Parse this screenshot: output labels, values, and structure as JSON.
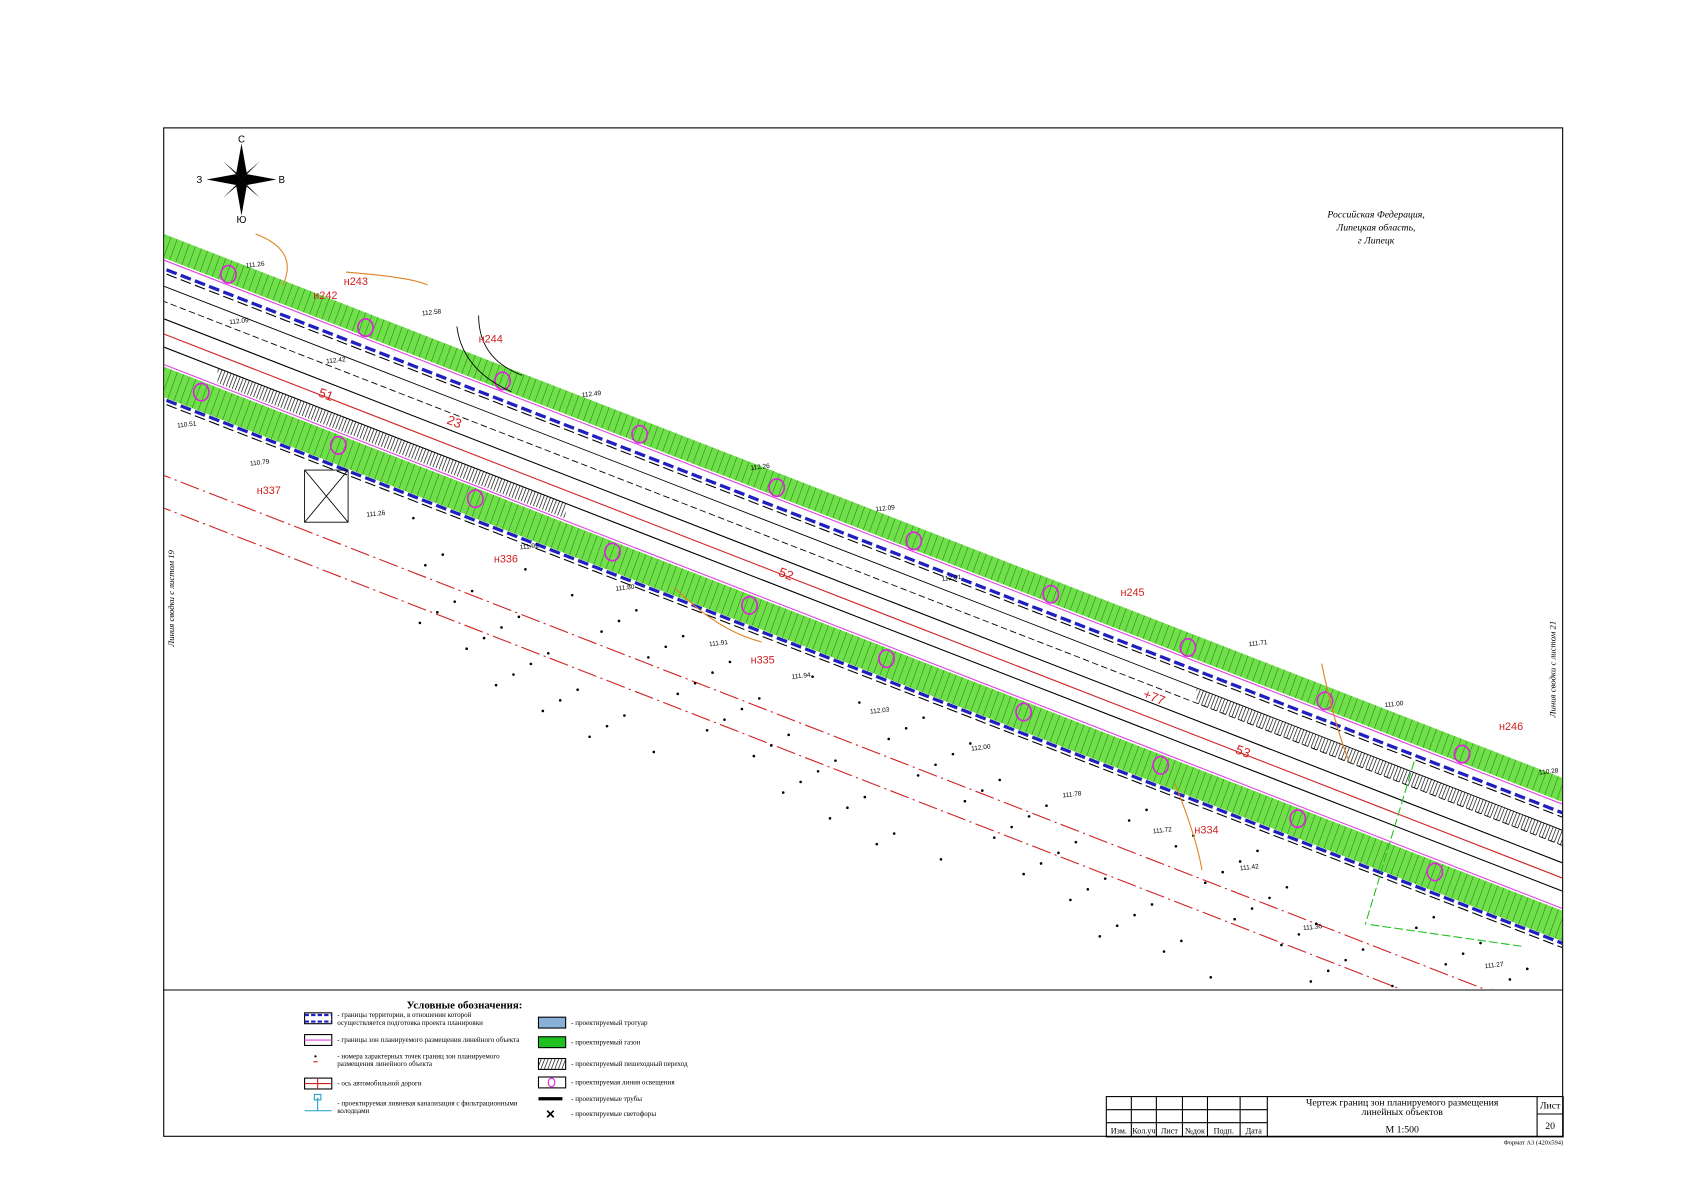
{
  "compass": {
    "north": "С",
    "west": "З",
    "east": "В",
    "south": "Ю"
  },
  "location": [
    "Российская Федерация,",
    "Липецкая область,",
    "г Липецк"
  ],
  "match_lines": {
    "left": "Линия сводки с листом 19",
    "right": "Линия сводки с листом 21"
  },
  "points": [
    "н242",
    "н243",
    "н244",
    "н245",
    "н246",
    "н334",
    "н335",
    "н336",
    "н337"
  ],
  "pickets": [
    "51",
    "52",
    "53",
    "23",
    "+77"
  ],
  "elevations": [
    "111.26",
    "112.09",
    "110.51",
    "110.79",
    "112.58",
    "112.49",
    "112.26",
    "112.09",
    "111.26",
    "111.92",
    "111.80",
    "111.91",
    "111.94",
    "112.03",
    "112.00",
    "111.78",
    "111.72",
    "111.42",
    "111.36",
    "111.27",
    "111.71",
    "111.00",
    "110.28",
    "112.42",
    "112.01"
  ],
  "legend": {
    "title": "Условные обозначения:",
    "items": [
      "- границы территории, в отношении которой осуществляется подготовка проекта планировки",
      "- границы зон планируемого размещения линейного объекта",
      "- номера характерных точек границ зон планируемого размещения линейного объекта",
      "- ось автомобильной дороги",
      "- проектируемая ливневая канализация с фильтрационными колодцами",
      "- проектируемый тротуар",
      "- проектируемый газон",
      "- проектируемый пешеходный переход",
      "- проектируемая линия освещения",
      "- проектируемые трубы",
      "- проектируемые светофоры"
    ]
  },
  "title_block": {
    "title": "Чертеж границ зон планируемого размещения линейных объектов",
    "scale": "М 1:500",
    "sheet_label": "Лист",
    "sheet_number": "20",
    "columns": [
      "Изм.",
      "Кол.уч",
      "Лист",
      "№док",
      "Подп.",
      "Дата"
    ],
    "format": "Формат А3 (420х594)"
  }
}
